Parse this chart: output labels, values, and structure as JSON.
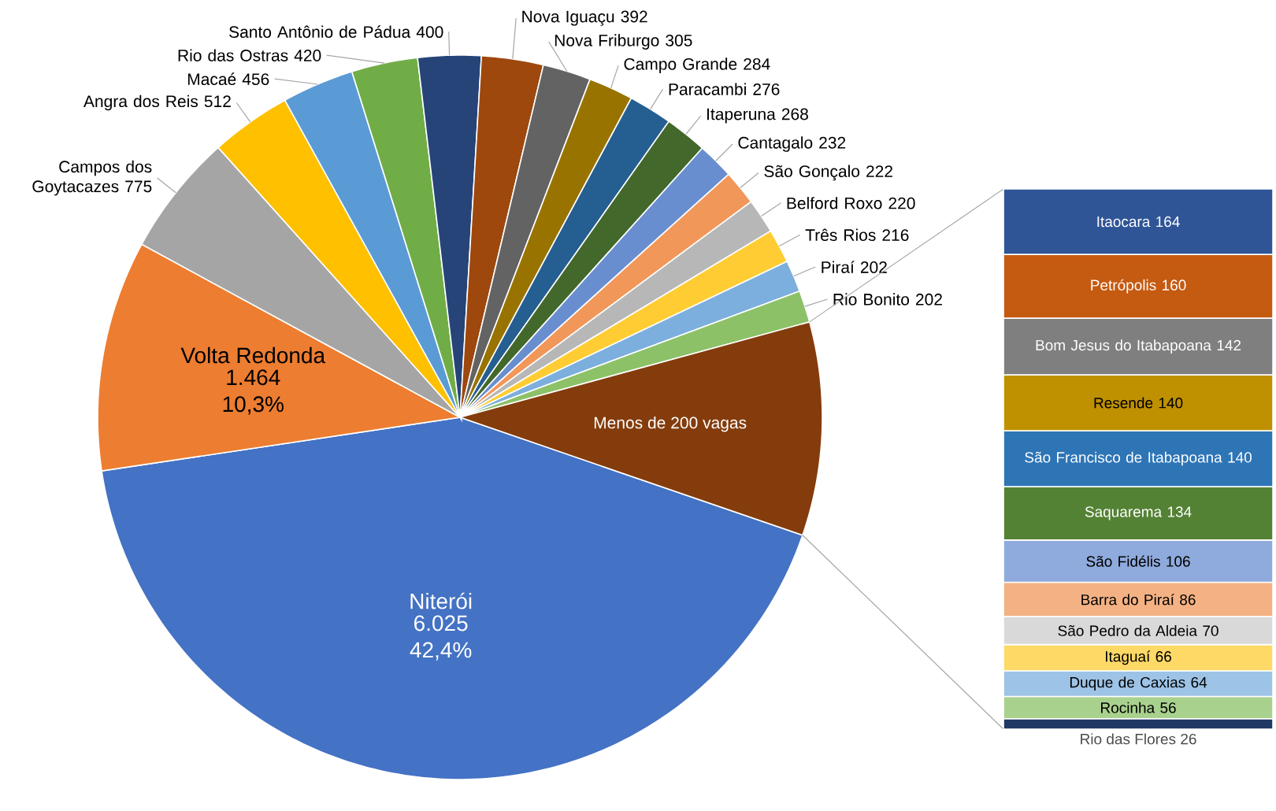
{
  "chart_data": [
    {
      "type": "pie",
      "categories": [
        "Niterói",
        "Volta Redonda",
        "Campos dos Goytacazes",
        "Angra dos Reis",
        "Macaé",
        "Rio das Ostras",
        "Santo Antônio de Pádua",
        "Nova Iguaçu",
        "Nova Friburgo",
        "Campo Grande",
        "Paracambi",
        "Itaperuna",
        "Cantagalo",
        "São Gonçalo",
        "Belford Roxo",
        "Três Rios",
        "Piraí",
        "Rio Bonito",
        "Menos de 200 vagas"
      ],
      "values": [
        6025,
        1464,
        775,
        512,
        456,
        420,
        400,
        392,
        305,
        284,
        276,
        268,
        232,
        222,
        220,
        216,
        202,
        202,
        1354
      ],
      "value_labels": [
        "6.025 42,4%",
        "1.464 10,3%",
        "775",
        "512",
        "456",
        "420",
        "400",
        "392",
        "305",
        "284",
        "276",
        "268",
        "232",
        "222",
        "220",
        "216",
        "202",
        "202",
        null
      ],
      "colors": [
        "#4472c4",
        "#ed7d31",
        "#a5a5a5",
        "#ffc000",
        "#5b9bd5",
        "#70ad47",
        "#264478",
        "#9e480e",
        "#636363",
        "#997300",
        "#255e91",
        "#43682b",
        "#698ed0",
        "#f1975a",
        "#b7b7b7",
        "#ffcd33",
        "#7cafdd",
        "#8cc168",
        "#843c0c"
      ]
    },
    {
      "type": "bar",
      "stacked": true,
      "categories": [
        null
      ],
      "data_labels": true,
      "series": [
        {
          "name": "Rio das Flores",
          "color": "#1f3864",
          "values": [
            26
          ]
        },
        {
          "name": "Rocinha",
          "color": "#a9d18e",
          "values": [
            56
          ]
        },
        {
          "name": "Duque de Caxias",
          "color": "#9dc3e6",
          "values": [
            64
          ]
        },
        {
          "name": "Itaguaí",
          "color": "#ffd966",
          "values": [
            66
          ]
        },
        {
          "name": "São Pedro da Aldeia",
          "color": "#d9d9d9",
          "values": [
            70
          ]
        },
        {
          "name": "Barra do Piraí",
          "color": "#f4b183",
          "values": [
            86
          ]
        },
        {
          "name": "São Fidélis",
          "color": "#8faadc",
          "values": [
            106
          ]
        },
        {
          "name": "Saquarema",
          "color": "#548235",
          "values": [
            134
          ]
        },
        {
          "name": "São Francisco de Itabapoana",
          "color": "#2e75b6",
          "values": [
            140
          ]
        },
        {
          "name": "Resende",
          "color": "#bf9000",
          "values": [
            140
          ]
        },
        {
          "name": "Bom Jesus do Itabapoana",
          "color": "#7f7f7f",
          "values": [
            142
          ]
        },
        {
          "name": "Petrópolis",
          "color": "#c55a11",
          "values": [
            160
          ]
        },
        {
          "name": "Itaocara",
          "color": "#2f5597",
          "values": [
            164
          ]
        }
      ]
    }
  ]
}
